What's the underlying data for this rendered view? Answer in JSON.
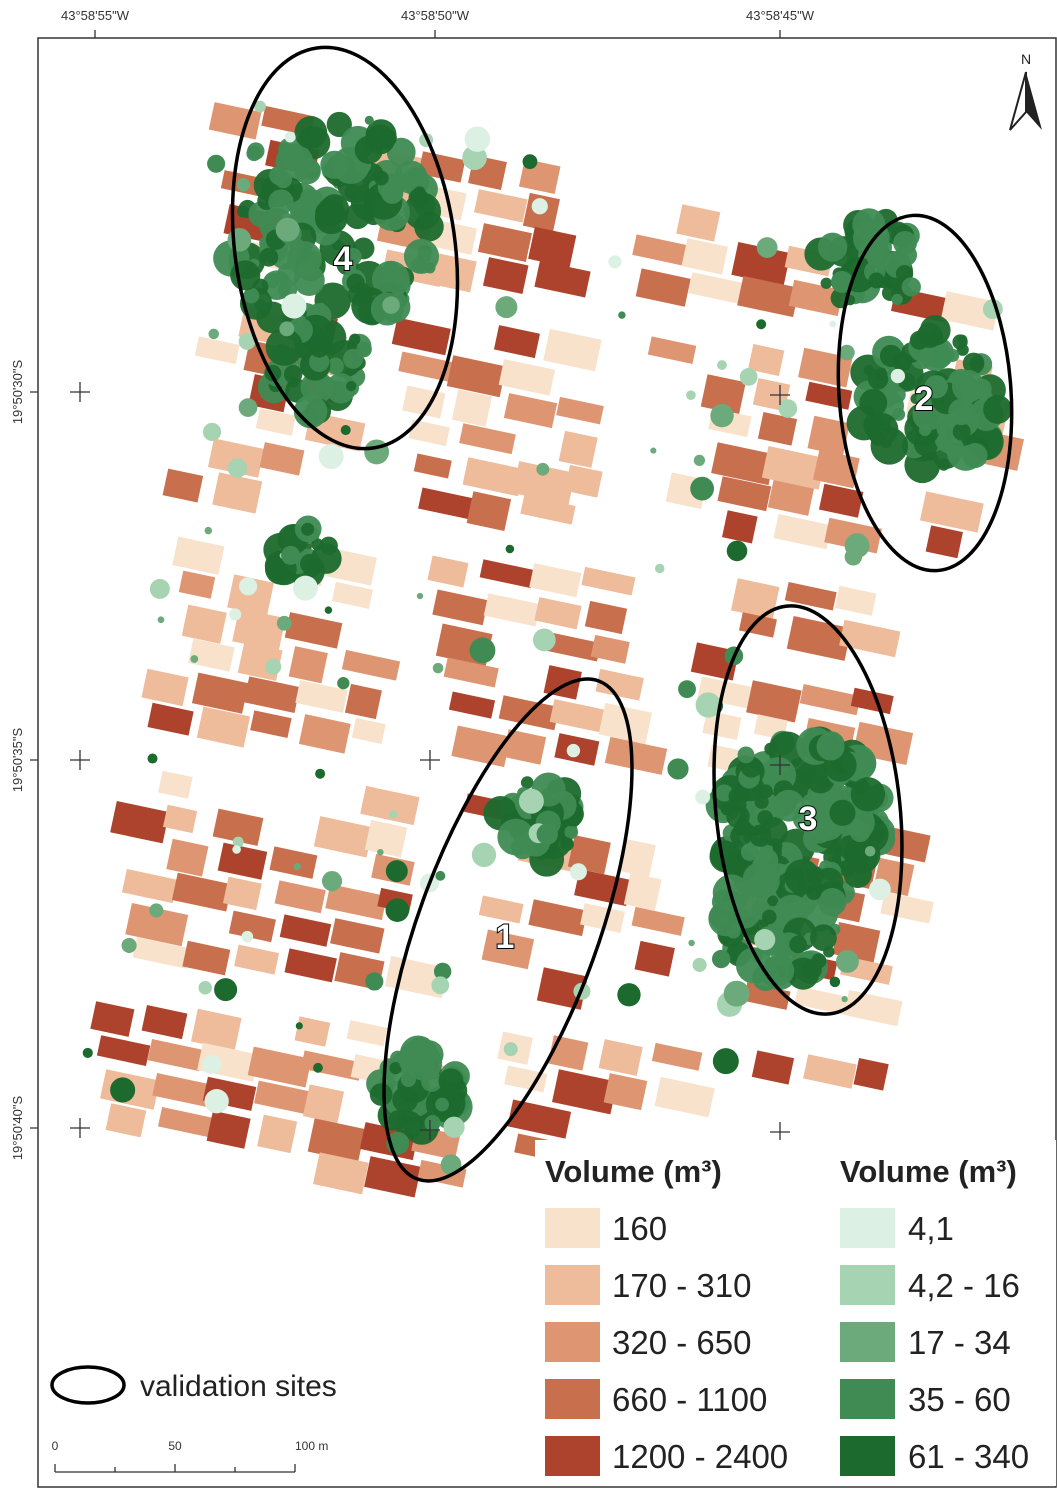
{
  "map": {
    "longitude_labels": [
      "43°58'55\"W",
      "43°58'50\"W",
      "43°58'45\"W"
    ],
    "latitude_labels": [
      "19°50'30\"S",
      "19°50'35\"S",
      "19°50'40\"S"
    ],
    "north_label": "N",
    "sites": [
      "1",
      "2",
      "3",
      "4"
    ],
    "legend_buildings": {
      "title": "Volume (m³)",
      "items": [
        {
          "label": "160",
          "color": "#f8e2cc"
        },
        {
          "label": "170 - 310",
          "color": "#eebb9b"
        },
        {
          "label": "320 - 650",
          "color": "#de9672"
        },
        {
          "label": "660 - 1100",
          "color": "#c86f4e"
        },
        {
          "label": "1200 - 2400",
          "color": "#ad432c"
        }
      ]
    },
    "legend_trees": {
      "title": "Volume (m³)",
      "items": [
        {
          "label": "4,1",
          "color": "#dcf1e3"
        },
        {
          "label": "4,2 - 16",
          "color": "#a6d3b2"
        },
        {
          "label": "17 - 34",
          "color": "#6ca97b"
        },
        {
          "label": "35 - 60",
          "color": "#3f8b53"
        },
        {
          "label": "61 - 340",
          "color": "#1c6a2d"
        }
      ]
    },
    "validation_label": "validation sites",
    "scale_labels": [
      "0",
      "50",
      "100 m"
    ]
  }
}
